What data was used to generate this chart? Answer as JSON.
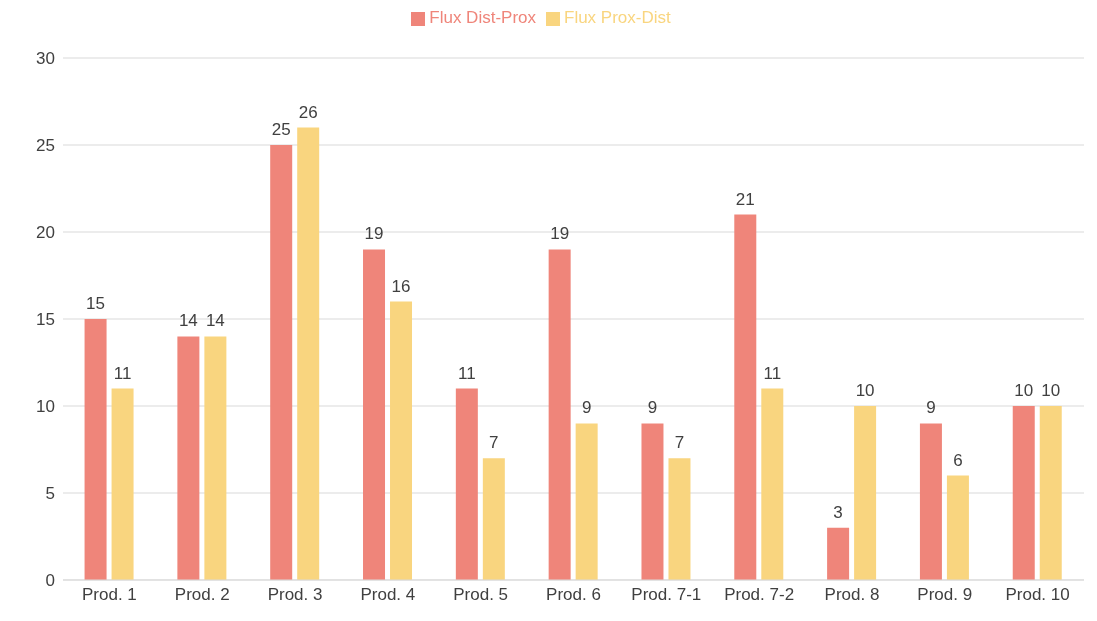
{
  "chart_data": {
    "type": "bar",
    "categories": [
      "Prod. 1",
      "Prod. 2",
      "Prod. 3",
      "Prod. 4",
      "Prod. 5",
      "Prod. 6",
      "Prod. 7-1",
      "Prod. 7-2",
      "Prod. 8",
      "Prod. 9",
      "Prod. 10"
    ],
    "series": [
      {
        "name": "Flux Dist-Prox",
        "color": "#ef857a",
        "values": [
          15,
          14,
          25,
          19,
          11,
          19,
          9,
          21,
          3,
          9,
          10
        ]
      },
      {
        "name": "Flux Prox-Dist",
        "color": "#f9d57f",
        "values": [
          11,
          14,
          26,
          16,
          7,
          9,
          7,
          11,
          10,
          6,
          10
        ]
      }
    ],
    "ylim": [
      0,
      30
    ],
    "yticks": [
      0,
      5,
      10,
      15,
      20,
      25,
      30
    ],
    "grid": "y",
    "legend": "top",
    "data_labels": true
  }
}
